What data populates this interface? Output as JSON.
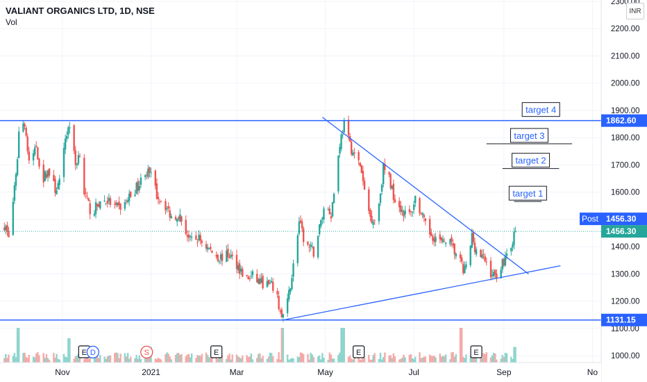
{
  "header": {
    "symbol": "VALIANT ORGANICS LTD, 1D, NSE",
    "volume_label": "Vol",
    "currency": "INR"
  },
  "chart_data": {
    "type": "candlestick",
    "title": "VALIANT ORGANICS LTD, 1D, NSE",
    "ylim": [
      975,
      2305
    ],
    "y_ticks": [
      1000,
      1100,
      1200,
      1300,
      1400,
      1500,
      1600,
      1700,
      1800,
      1900,
      2000,
      2100,
      2200,
      2300
    ],
    "y_tick_labels": [
      "1000.00",
      "1100.00",
      "1200.00",
      "1300.00",
      "1400.00",
      "1500.00",
      "1600.00",
      "1700.00",
      "1800.00",
      "1900.00",
      "2000.00",
      "2100.00",
      "2200.00",
      "2300.00"
    ],
    "x_tick_labels": [
      "Nov",
      "2021",
      "Mar",
      "May",
      "Jul",
      "Sep",
      "No"
    ],
    "x_range": [
      "2020-09-19",
      "2021-11-07"
    ],
    "x_ticks": [
      {
        "label": "Nov",
        "date": "2020-11-01"
      },
      {
        "label": "2021",
        "date": "2021-01-01"
      },
      {
        "label": "Mar",
        "date": "2021-03-01"
      },
      {
        "label": "May",
        "date": "2021-05-01"
      },
      {
        "label": "Jul",
        "date": "2021-07-01"
      },
      {
        "label": "Sep",
        "date": "2021-09-01"
      },
      {
        "label": "No",
        "date": "2021-11-01"
      }
    ],
    "price_key_points": [
      [
        "2020-09-22",
        1480
      ],
      [
        "2020-09-25",
        1440
      ],
      [
        "2020-09-30",
        1650
      ],
      [
        "2020-10-02",
        1820
      ],
      [
        "2020-10-06",
        1860
      ],
      [
        "2020-10-09",
        1700
      ],
      [
        "2020-10-14",
        1770
      ],
      [
        "2020-10-18",
        1640
      ],
      [
        "2020-10-22",
        1680
      ],
      [
        "2020-10-27",
        1610
      ],
      [
        "2020-10-31",
        1640
      ],
      [
        "2020-11-03",
        1800
      ],
      [
        "2020-11-06",
        1850
      ],
      [
        "2020-11-10",
        1700
      ],
      [
        "2020-11-13",
        1750
      ],
      [
        "2020-11-16",
        1600
      ],
      [
        "2020-11-21",
        1520
      ],
      [
        "2020-11-26",
        1560
      ],
      [
        "2020-12-02",
        1570
      ],
      [
        "2020-12-08",
        1540
      ],
      [
        "2020-12-13",
        1550
      ],
      [
        "2020-12-18",
        1590
      ],
      [
        "2020-12-24",
        1630
      ],
      [
        "2020-12-28",
        1680
      ],
      [
        "2021-01-01",
        1660
      ],
      [
        "2021-01-05",
        1590
      ],
      [
        "2021-01-10",
        1560
      ],
      [
        "2021-01-15",
        1510
      ],
      [
        "2021-01-20",
        1520
      ],
      [
        "2021-01-24",
        1470
      ],
      [
        "2021-01-28",
        1420
      ],
      [
        "2021-02-03",
        1430
      ],
      [
        "2021-02-10",
        1390
      ],
      [
        "2021-02-17",
        1360
      ],
      [
        "2021-02-24",
        1370
      ],
      [
        "2021-03-02",
        1330
      ],
      [
        "2021-03-07",
        1280
      ],
      [
        "2021-03-12",
        1290
      ],
      [
        "2021-03-17",
        1270
      ],
      [
        "2021-03-22",
        1260
      ],
      [
        "2021-03-27",
        1250
      ],
      [
        "2021-04-01",
        1140
      ],
      [
        "2021-04-04",
        1160
      ],
      [
        "2021-04-09",
        1330
      ],
      [
        "2021-04-13",
        1490
      ],
      [
        "2021-04-16",
        1430
      ],
      [
        "2021-04-19",
        1400
      ],
      [
        "2021-04-23",
        1380
      ],
      [
        "2021-04-27",
        1470
      ],
      [
        "2021-05-01",
        1560
      ],
      [
        "2021-05-05",
        1520
      ],
      [
        "2021-05-08",
        1640
      ],
      [
        "2021-05-11",
        1780
      ],
      [
        "2021-05-14",
        1850
      ],
      [
        "2021-05-17",
        1790
      ],
      [
        "2021-05-21",
        1730
      ],
      [
        "2021-05-25",
        1700
      ],
      [
        "2021-05-28",
        1600
      ],
      [
        "2021-06-01",
        1510
      ],
      [
        "2021-06-04",
        1500
      ],
      [
        "2021-06-07",
        1560
      ],
      [
        "2021-06-10",
        1690
      ],
      [
        "2021-06-14",
        1650
      ],
      [
        "2021-06-17",
        1590
      ],
      [
        "2021-06-21",
        1550
      ],
      [
        "2021-06-25",
        1520
      ],
      [
        "2021-06-29",
        1520
      ],
      [
        "2021-07-02",
        1580
      ],
      [
        "2021-07-06",
        1520
      ],
      [
        "2021-07-10",
        1460
      ],
      [
        "2021-07-14",
        1440
      ],
      [
        "2021-07-17",
        1430
      ],
      [
        "2021-07-21",
        1410
      ],
      [
        "2021-07-24",
        1440
      ],
      [
        "2021-07-28",
        1390
      ],
      [
        "2021-08-01",
        1360
      ],
      [
        "2021-08-04",
        1310
      ],
      [
        "2021-08-07",
        1330
      ],
      [
        "2021-08-10",
        1440
      ],
      [
        "2021-08-12",
        1400
      ],
      [
        "2021-08-15",
        1370
      ],
      [
        "2021-08-19",
        1350
      ],
      [
        "2021-08-22",
        1310
      ],
      [
        "2021-08-26",
        1290
      ],
      [
        "2021-08-29",
        1320
      ],
      [
        "2021-09-01",
        1350
      ],
      [
        "2021-09-04",
        1390
      ],
      [
        "2021-09-07",
        1420
      ],
      [
        "2021-09-09",
        1456
      ]
    ],
    "volume_spikes": [
      [
        "2020-10-02",
        1.0
      ],
      [
        "2020-11-06",
        0.7
      ],
      [
        "2021-01-01",
        0.45
      ],
      [
        "2021-04-02",
        1.0
      ],
      [
        "2021-05-13",
        1.0
      ],
      [
        "2021-08-02",
        1.0
      ],
      [
        "2021-09-09",
        0.45
      ]
    ],
    "last_price": 1456.3,
    "last_price_label": "1456.30",
    "post_label": "Post",
    "post_price_label": "1456.30",
    "colors": {
      "up": "#26a69a",
      "down": "#ef5350",
      "up_volume": "#8fd5cd",
      "down_volume": "#f5aaa7",
      "line": "#2962ff",
      "axis_text": "#131722",
      "grid": "#f0f3fa"
    },
    "horizontal_lines": [
      {
        "price": 1862.6,
        "label": "1862.60"
      },
      {
        "price": 1131.15,
        "label": "1131.15"
      }
    ],
    "trend_lines": [
      {
        "from": [
          "2021-04-02",
          1131
        ],
        "to": [
          "2021-10-10",
          1330
        ]
      },
      {
        "from": [
          "2021-04-29",
          1875
        ],
        "to": [
          "2021-09-18",
          1300
        ]
      }
    ],
    "target_lines": [
      {
        "label": "target 4",
        "price": 1888,
        "from": "2021-09-08",
        "to": "2021-10-15",
        "underline": false
      },
      {
        "label": "target 3",
        "price": 1793,
        "from": "2021-08-20",
        "to": "2021-10-18",
        "underline": true
      },
      {
        "label": "target 2",
        "price": 1702,
        "from": "2021-08-31",
        "to": "2021-10-09",
        "underline": true
      },
      {
        "label": "target 1",
        "price": 1581,
        "from": "2021-09-08",
        "to": "2021-09-27",
        "underline": true
      }
    ],
    "event_markers": [
      {
        "label": "E",
        "date": "2020-11-16",
        "kind": "earnings"
      },
      {
        "label": "D",
        "date": "2020-11-22",
        "kind": "dividend"
      },
      {
        "label": "S",
        "date": "2020-12-29",
        "kind": "split"
      },
      {
        "label": "E",
        "date": "2021-02-15",
        "kind": "earnings"
      },
      {
        "label": "E",
        "date": "2021-05-24",
        "kind": "earnings"
      },
      {
        "label": "E",
        "date": "2021-08-13",
        "kind": "earnings"
      }
    ]
  }
}
